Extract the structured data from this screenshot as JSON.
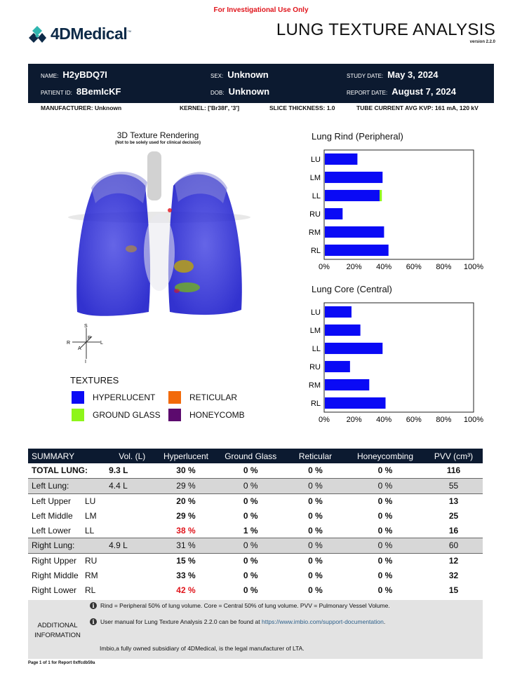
{
  "header": {
    "notice": "For Investigational Use Only",
    "logo_text_a": "4D",
    "logo_text_b": "Medical",
    "logo_tm": "™",
    "title": "LUNG TEXTURE ANALYSIS",
    "version": "version 2.2.0"
  },
  "patient": {
    "name_label": "NAME:",
    "name": "H2yBDQ7I",
    "id_label": "PATIENT ID:",
    "id": "8BemIcKF",
    "sex_label": "SEX:",
    "sex": "Unknown",
    "dob_label": "DOB:",
    "dob": "Unknown",
    "study_date_label": "STUDY DATE:",
    "study_date": "May 3, 2024",
    "report_date_label": "REPORT DATE:",
    "report_date": "August 7, 2024"
  },
  "scan": {
    "manufacturer": "MANUFACTURER: Unknown",
    "kernel": "KERNEL: ['Br38f', '3']",
    "slice": "SLICE THICKNESS: 1.0",
    "tube": "TUBE CURRENT AVG KVP: 161 mA, 120 kV"
  },
  "render": {
    "title": "3D Texture Rendering",
    "subtitle": "(Not to be solely used for clinical decision)",
    "orientation": {
      "s": "S",
      "i": "I",
      "r": "R",
      "l": "L",
      "a": "A",
      "p": "P"
    }
  },
  "textures": {
    "heading": "TEXTURES",
    "items": [
      {
        "label": "HYPERLUCENT",
        "color": "#0a0af5"
      },
      {
        "label": "RETICULAR",
        "color": "#f26a0a"
      },
      {
        "label": "GROUND GLASS",
        "color": "#8ef51a"
      },
      {
        "label": "HONEYCOMB",
        "color": "#5c0a6e"
      }
    ]
  },
  "chart_data": [
    {
      "type": "bar",
      "orientation": "horizontal",
      "title": "Lung Rind (Peripheral)",
      "categories": [
        "LU",
        "LM",
        "LL",
        "RU",
        "RM",
        "RL"
      ],
      "series": [
        {
          "name": "HYPERLUCENT",
          "color": "#0a0af5",
          "values": [
            22,
            39,
            37,
            12,
            40,
            43
          ]
        },
        {
          "name": "GROUND GLASS",
          "color": "#8ef51a",
          "values": [
            0,
            0,
            1.5,
            0,
            0,
            0
          ]
        }
      ],
      "xlim": [
        0,
        100
      ],
      "xticks": [
        "0%",
        "20%",
        "40%",
        "60%",
        "80%",
        "100%"
      ]
    },
    {
      "type": "bar",
      "orientation": "horizontal",
      "title": "Lung Core (Central)",
      "categories": [
        "LU",
        "LM",
        "LL",
        "RU",
        "RM",
        "RL"
      ],
      "series": [
        {
          "name": "HYPERLUCENT",
          "color": "#0a0af5",
          "values": [
            18,
            24,
            39,
            17,
            30,
            41
          ]
        }
      ],
      "xlim": [
        0,
        100
      ],
      "xticks": [
        "0%",
        "20%",
        "40%",
        "60%",
        "80%",
        "100%"
      ]
    }
  ],
  "summary": {
    "headers": [
      "SUMMARY",
      "Vol. (L)",
      "Hyperlucent",
      "Ground Glass",
      "Reticular",
      "Honeycombing",
      "PVV (cm³)"
    ],
    "rows": [
      {
        "name": "TOTAL LUNG:",
        "code": "",
        "vol": "9.3 L",
        "hyper": "30 %",
        "gg": "0 %",
        "ret": "0 %",
        "honey": "0 %",
        "pvv": "116"
      },
      {
        "name": "Left Lung:",
        "code": "",
        "vol": "4.4 L",
        "hyper": "29 %",
        "gg": "0 %",
        "ret": "0 %",
        "honey": "0 %",
        "pvv": "55"
      },
      {
        "name": "Left Upper",
        "code": "LU",
        "vol": "",
        "hyper": "20 %",
        "gg": "0 %",
        "ret": "0 %",
        "honey": "0 %",
        "pvv": "13"
      },
      {
        "name": "Left Middle",
        "code": "LM",
        "vol": "",
        "hyper": "29 %",
        "gg": "0 %",
        "ret": "0 %",
        "honey": "0 %",
        "pvv": "25"
      },
      {
        "name": "Left Lower",
        "code": "LL",
        "vol": "",
        "hyper": "38 %",
        "gg": "1 %",
        "ret": "0 %",
        "honey": "0 %",
        "pvv": "16"
      },
      {
        "name": "Right Lung:",
        "code": "",
        "vol": "4.9 L",
        "hyper": "31 %",
        "gg": "0 %",
        "ret": "0 %",
        "honey": "0 %",
        "pvv": "60"
      },
      {
        "name": "Right Upper",
        "code": "RU",
        "vol": "",
        "hyper": "15 %",
        "gg": "0 %",
        "ret": "0 %",
        "honey": "0 %",
        "pvv": "12"
      },
      {
        "name": "Right Middle",
        "code": "RM",
        "vol": "",
        "hyper": "33 %",
        "gg": "0 %",
        "ret": "0 %",
        "honey": "0 %",
        "pvv": "32"
      },
      {
        "name": "Right Lower",
        "code": "RL",
        "vol": "",
        "hyper": "42 %",
        "gg": "0 %",
        "ret": "0 %",
        "honey": "0 %",
        "pvv": "15"
      }
    ]
  },
  "info": {
    "label_1": "ADDITIONAL",
    "label_2": "INFORMATION",
    "icon": "i",
    "line1": "Rind = Peripheral 50% of lung volume. Core = Central 50% of lung volume. PVV = Pulmonary Vessel Volume.",
    "line2_prefix": "User manual for Lung Texture Analysis 2.2.0 can be found at ",
    "line2_link": "https://www.imbio.com/support-documentation",
    "line2_suffix": ".",
    "line3": "Imbio,a fully owned subsidiary of 4DMedical, is the legal manufacturer of LTA."
  },
  "footer": "Page 1 of 1 for Report 0xffcdb59a"
}
